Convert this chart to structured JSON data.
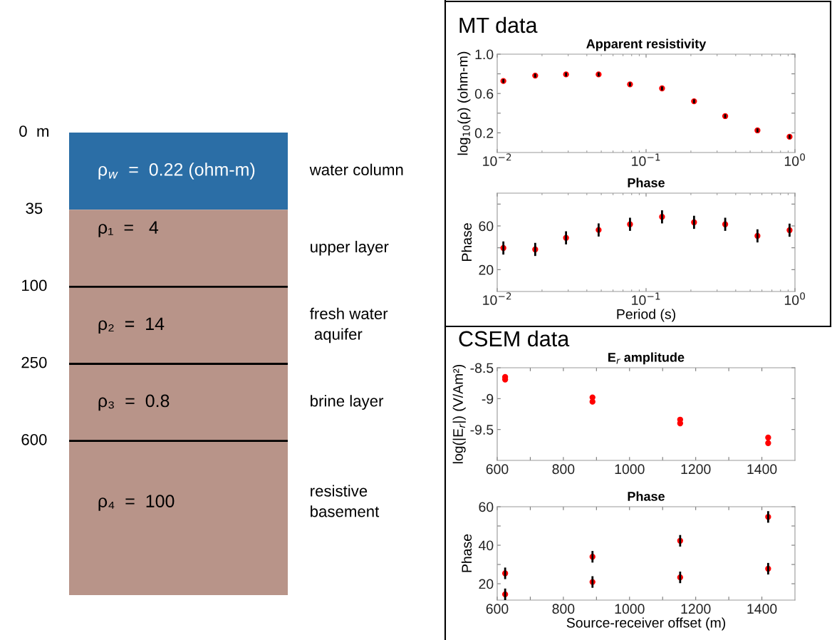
{
  "chart_data": [
    {
      "type": "other",
      "categories": [
        "water column",
        "upper layer",
        "fresh water\n aquifer",
        "brine layer",
        "resistive\nbasement"
      ],
      "y_categories": [
        "0  m",
        "35",
        "100",
        "250",
        "600"
      ],
      "value_labels": [
        "ρ$_{w}$  =  0.22 (ohm-m)",
        "ρ₁  =   4",
        "ρ₂  =  14",
        "ρ₃  =  0.8",
        "ρ₄  =  100"
      ],
      "colors": [
        "#2b6ea6",
        "#b89489",
        "#b89489",
        "#b89489",
        "#b89489"
      ]
    },
    {
      "type": "scatter",
      "title": "Apparent resistivity",
      "ylabel": "log$_{10}$(ρ) (ohm-m)",
      "annotations": [
        "MT data"
      ],
      "log": "x",
      "marker": "circle",
      "xlim": [
        0.01,
        1
      ],
      "xticks": [
        {
          "value": 0.01,
          "label": "10$^{−2}$"
        },
        {
          "value": 0.1,
          "label": "10$^{−1}$"
        },
        {
          "value": 1,
          "label": "10$^{0}$"
        }
      ],
      "ylim": [
        0,
        1
      ],
      "yticks": [
        0.2,
        {
          "value": 0.4,
          "label": null
        },
        0.6,
        {
          "value": 0.8,
          "label": null
        },
        {
          "value": 1,
          "label": "1.0"
        }
      ],
      "x": [
        0.011,
        0.018,
        0.029,
        0.048,
        0.078,
        0.128,
        0.21,
        0.34,
        0.56,
        0.92
      ],
      "series": [
        {
          "color": "#ff0000",
          "values": [
            0.727,
            0.782,
            0.794,
            0.794,
            0.693,
            0.652,
            0.521,
            0.37,
            0.225,
            0.16
          ],
          "errors": [
            0.02,
            0.02,
            0.02,
            0.02,
            0.02,
            0.02,
            0.02,
            0.02,
            0.02,
            0.02
          ]
        }
      ]
    },
    {
      "type": "scatter",
      "title": "Phase",
      "xlabel": "Period (s)",
      "ylabel": "Phase",
      "log": "x",
      "marker": "circle",
      "xlim": [
        0.01,
        1
      ],
      "xticks": [
        {
          "value": 0.01,
          "label": "10$^{−2}$"
        },
        {
          "value": 0.1,
          "label": "10$^{−1}$"
        },
        {
          "value": 1,
          "label": "10$^{0}$"
        }
      ],
      "ylim": [
        0,
        90
      ],
      "yticks": [
        20,
        {
          "value": 40,
          "label": null
        },
        60,
        {
          "value": 80,
          "label": null
        }
      ],
      "x": [
        0.011,
        0.018,
        0.029,
        0.048,
        0.078,
        0.128,
        0.21,
        0.34,
        0.56,
        0.92
      ],
      "series": [
        {
          "color": "#ff0000",
          "values": [
            39.8,
            38.5,
            49.1,
            56.3,
            61.5,
            68.3,
            63.3,
            61.5,
            50.9,
            56.1
          ],
          "errors": [
            6,
            6,
            6,
            6,
            6,
            6,
            6,
            6,
            6,
            6
          ]
        }
      ]
    },
    {
      "type": "scatter",
      "title": "E$_{r}$ amplitude",
      "ylabel": "log(|E$_{r}$|) (V/Am²)",
      "annotations": [
        "CSEM data"
      ],
      "marker": "circle",
      "xlim": [
        600,
        1500
      ],
      "xticks": [
        600,
        {
          "value": 700,
          "label": null
        },
        800,
        {
          "value": 900,
          "label": null
        },
        1000,
        {
          "value": 1100,
          "label": null
        },
        1200,
        {
          "value": 1300,
          "label": null
        },
        1400
      ],
      "ylim": [
        -10,
        -8.5
      ],
      "yticks": [
        -9.5,
        -9,
        -8.5
      ],
      "x": [
        624,
        888,
        1153,
        1419
      ],
      "series": [
        {
          "color": "#ff0000",
          "values": [
            -8.65,
            -8.98,
            -9.34,
            -9.63
          ]
        },
        {
          "color": "#ff0000",
          "values": [
            -8.69,
            -9.05,
            -9.4,
            -9.72
          ]
        }
      ]
    },
    {
      "type": "scatter",
      "title": "Phase",
      "xlabel": "Source-receiver offset (m)",
      "ylabel": "Phase",
      "marker": "circle",
      "xlim": [
        600,
        1500
      ],
      "xticks": [
        600,
        {
          "value": 700,
          "label": null
        },
        800,
        {
          "value": 900,
          "label": null
        },
        1000,
        {
          "value": 1100,
          "label": null
        },
        1200,
        {
          "value": 1300,
          "label": null
        },
        1400
      ],
      "ylim": [
        11.5,
        60
      ],
      "yticks": [
        20,
        {
          "value": 30,
          "label": null
        },
        40,
        {
          "value": 50,
          "label": null
        },
        60
      ],
      "x": [
        624,
        888,
        1153,
        1419
      ],
      "series": [
        {
          "color": "#ff0000",
          "values": [
            25.4,
            34.0,
            42.3,
            54.7
          ],
          "errors": [
            3,
            3,
            3,
            3
          ]
        },
        {
          "color": "#ff0000",
          "values": [
            14.5,
            20.9,
            23.3,
            27.8
          ],
          "errors": [
            3,
            3,
            3,
            3
          ]
        }
      ]
    }
  ]
}
